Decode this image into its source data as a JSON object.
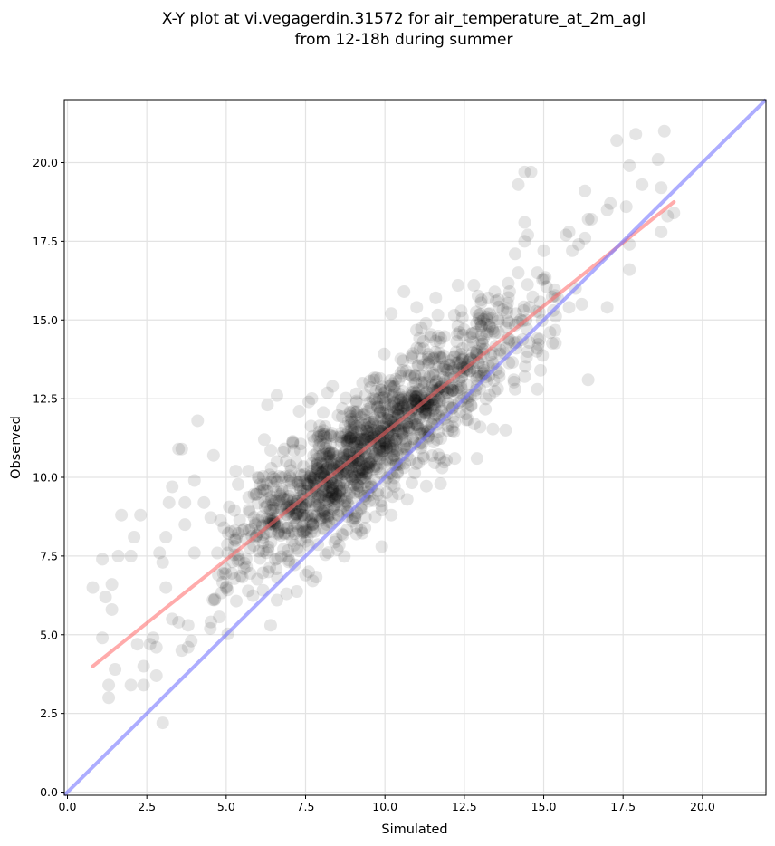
{
  "chart_data": {
    "type": "scatter",
    "title": "X-Y plot at vi.vegagerdin.31572 for air_temperature_at_2m_agl",
    "subtitle": "from 12-18h during summer",
    "xlabel": "Simulated",
    "ylabel": "Observed",
    "xlim": [
      -0.1,
      22.0
    ],
    "ylim": [
      -0.1,
      22.0
    ],
    "xticks": [
      "0.0",
      "2.5",
      "5.0",
      "7.5",
      "10.0",
      "12.5",
      "15.0",
      "17.5",
      "20.0"
    ],
    "yticks": [
      "0.0",
      "2.5",
      "5.0",
      "7.5",
      "10.0",
      "12.5",
      "15.0",
      "17.5",
      "20.0"
    ],
    "grid": true,
    "point_color": "#000000",
    "point_alpha": 0.1,
    "regression_line": {
      "color": "#ff6666",
      "x": [
        0.8,
        19.1
      ],
      "y": [
        4.0,
        18.75
      ]
    },
    "identity_line": {
      "color": "#7777ff",
      "x": [
        -0.1,
        22.0
      ],
      "y": [
        -0.1,
        22.0
      ]
    },
    "outliers": [
      [
        0.8,
        6.5
      ],
      [
        1.1,
        7.4
      ],
      [
        1.2,
        6.2
      ],
      [
        1.1,
        4.9
      ],
      [
        1.3,
        3.4
      ],
      [
        1.3,
        3.0
      ],
      [
        1.5,
        3.9
      ],
      [
        1.6,
        7.5
      ],
      [
        1.7,
        8.8
      ],
      [
        1.4,
        5.8
      ],
      [
        1.4,
        6.6
      ],
      [
        2.0,
        7.5
      ],
      [
        2.1,
        8.1
      ],
      [
        2.3,
        8.8
      ],
      [
        2.0,
        3.4
      ],
      [
        2.4,
        4.0
      ],
      [
        2.4,
        3.4
      ],
      [
        2.2,
        4.7
      ],
      [
        2.6,
        4.7
      ],
      [
        2.8,
        4.6
      ],
      [
        2.8,
        3.7
      ],
      [
        2.7,
        4.9
      ],
      [
        3.0,
        2.2
      ],
      [
        2.9,
        7.6
      ],
      [
        3.1,
        8.1
      ],
      [
        3.2,
        9.2
      ],
      [
        3.3,
        9.7
      ],
      [
        3.0,
        7.3
      ],
      [
        3.1,
        6.5
      ],
      [
        3.3,
        5.5
      ],
      [
        3.5,
        5.4
      ],
      [
        3.6,
        4.5
      ],
      [
        3.8,
        4.6
      ],
      [
        3.9,
        4.8
      ],
      [
        3.5,
        10.9
      ],
      [
        3.6,
        10.9
      ],
      [
        3.7,
        9.2
      ],
      [
        3.7,
        8.5
      ],
      [
        4.0,
        9.9
      ],
      [
        4.1,
        11.8
      ],
      [
        4.6,
        10.7
      ],
      [
        4.3,
        9.2
      ],
      [
        3.8,
        5.3
      ],
      [
        4.5,
        5.2
      ],
      [
        4.0,
        7.6
      ],
      [
        5.3,
        10.2
      ],
      [
        5.7,
        10.2
      ],
      [
        6.0,
        10.0
      ],
      [
        6.3,
        12.3
      ],
      [
        6.6,
        12.6
      ],
      [
        6.2,
        11.2
      ],
      [
        6.4,
        5.3
      ],
      [
        6.6,
        6.1
      ],
      [
        6.9,
        6.3
      ],
      [
        7.6,
        7.0
      ],
      [
        7.5,
        6.9
      ],
      [
        9.9,
        7.8
      ],
      [
        7.3,
        12.1
      ],
      [
        7.6,
        12.4
      ],
      [
        10.2,
        15.2
      ],
      [
        10.6,
        15.9
      ],
      [
        11.0,
        15.4
      ],
      [
        11.6,
        15.7
      ],
      [
        12.3,
        16.1
      ],
      [
        12.8,
        16.1
      ],
      [
        11.8,
        10.3
      ],
      [
        12.2,
        10.6
      ],
      [
        12.9,
        10.6
      ],
      [
        13.0,
        11.6
      ],
      [
        13.8,
        11.5
      ],
      [
        12.6,
        12.4
      ],
      [
        13.3,
        12.6
      ],
      [
        13.6,
        13.2
      ],
      [
        13.3,
        15.2
      ],
      [
        13.5,
        15.6
      ],
      [
        14.2,
        16.5
      ],
      [
        14.1,
        17.1
      ],
      [
        14.4,
        17.5
      ],
      [
        14.2,
        19.3
      ],
      [
        14.4,
        19.7
      ],
      [
        14.6,
        19.7
      ],
      [
        14.4,
        18.1
      ],
      [
        14.5,
        17.7
      ],
      [
        15.0,
        17.2
      ],
      [
        15.0,
        16.3
      ],
      [
        15.2,
        14.6
      ],
      [
        14.9,
        13.4
      ],
      [
        14.8,
        12.8
      ],
      [
        14.4,
        13.2
      ],
      [
        14.1,
        12.8
      ],
      [
        14.5,
        14.0
      ],
      [
        14.8,
        14.1
      ],
      [
        15.7,
        17.7
      ],
      [
        15.8,
        17.8
      ],
      [
        15.9,
        17.2
      ],
      [
        16.1,
        17.4
      ],
      [
        16.3,
        17.6
      ],
      [
        16.4,
        18.2
      ],
      [
        16.5,
        18.2
      ],
      [
        16.3,
        19.1
      ],
      [
        16.0,
        16.0
      ],
      [
        16.2,
        15.5
      ],
      [
        16.4,
        13.1
      ],
      [
        17.0,
        15.4
      ],
      [
        17.0,
        18.5
      ],
      [
        17.1,
        18.7
      ],
      [
        17.6,
        18.6
      ],
      [
        17.3,
        20.7
      ],
      [
        17.7,
        19.9
      ],
      [
        17.9,
        20.9
      ],
      [
        18.1,
        19.3
      ],
      [
        18.6,
        20.1
      ],
      [
        18.8,
        21.0
      ],
      [
        18.9,
        18.3
      ],
      [
        19.1,
        18.4
      ],
      [
        18.7,
        19.2
      ],
      [
        18.7,
        17.8
      ],
      [
        17.7,
        17.4
      ],
      [
        17.7,
        16.6
      ],
      [
        15.3,
        15.3
      ],
      [
        15.8,
        15.4
      ],
      [
        14.8,
        16.5
      ],
      [
        13.9,
        14.3
      ],
      [
        12.9,
        13.2
      ],
      [
        11.9,
        13.5
      ],
      [
        9.1,
        8.2
      ],
      [
        8.5,
        7.7
      ],
      [
        10.7,
        9.3
      ],
      [
        10.2,
        8.8
      ]
    ]
  }
}
